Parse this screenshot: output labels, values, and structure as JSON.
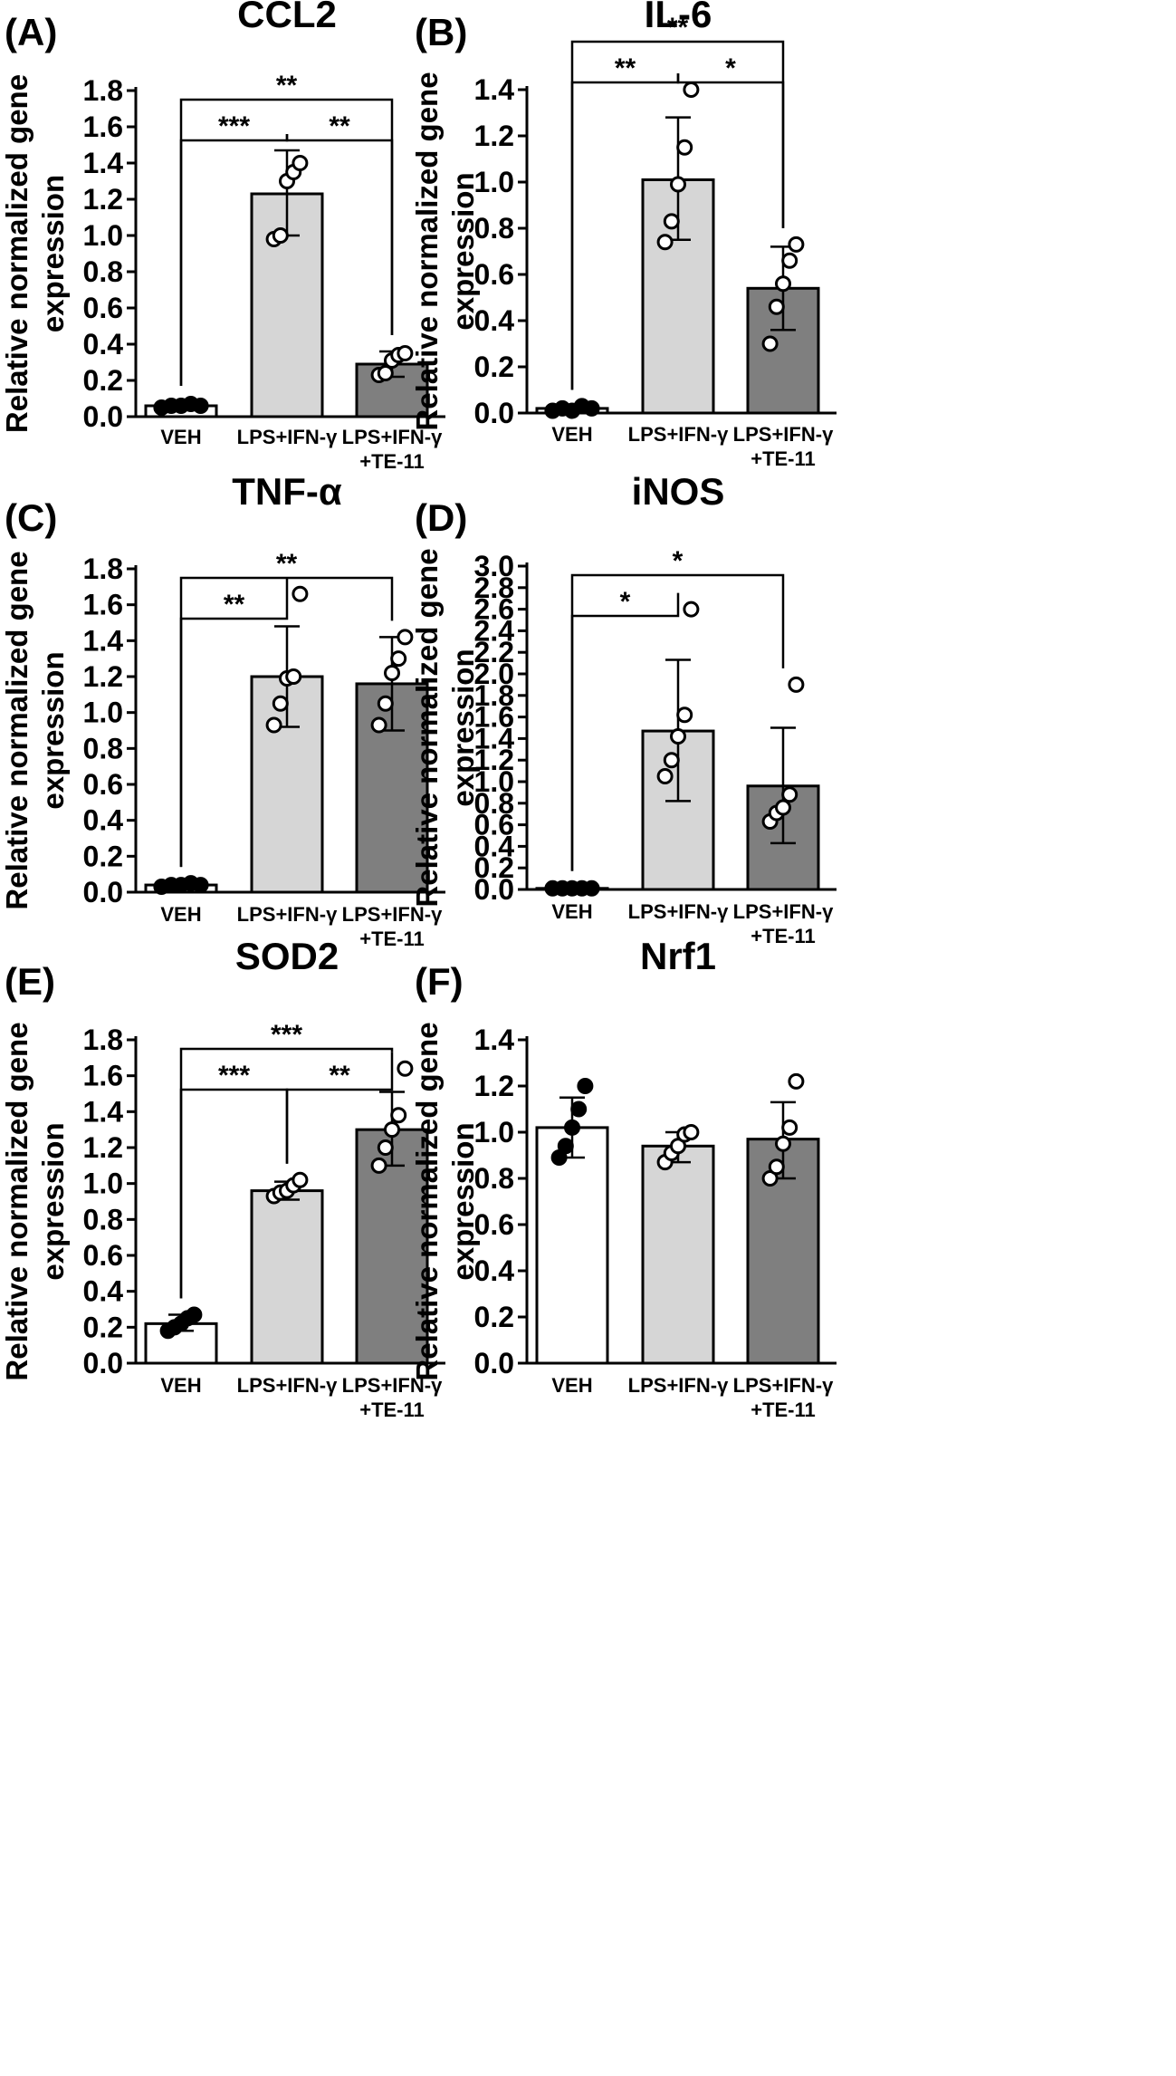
{
  "figure": {
    "colors": {
      "veh": "#ffffff",
      "lps": "#d6d6d6",
      "te11": "#7f7f7f",
      "stroke": "#000000"
    }
  },
  "chart_data": [
    {
      "type": "bar",
      "panel": "(A)",
      "title": "CCL2",
      "ylabel": [
        "Relative normalized gene",
        "expression"
      ],
      "ylim": [
        0,
        1.8
      ],
      "yticks": [
        "0.0",
        "0.2",
        "0.4",
        "0.6",
        "0.8",
        "1.0",
        "1.2",
        "1.4",
        "1.6",
        "1.8"
      ],
      "categories": [
        [
          "VEH"
        ],
        [
          "LPS+IFN-γ"
        ],
        [
          "LPS+IFN-γ",
          "+TE-11"
        ]
      ],
      "values": [
        0.06,
        1.23,
        0.29
      ],
      "error": [
        [
          0.04,
          0.08
        ],
        [
          1.0,
          1.47
        ],
        [
          0.22,
          0.36
        ]
      ],
      "points": [
        [
          0.05,
          0.06,
          0.06,
          0.07,
          0.06
        ],
        [
          0.98,
          1.0,
          1.3,
          1.35,
          1.4
        ],
        [
          0.23,
          0.24,
          0.31,
          0.34,
          0.35
        ]
      ],
      "significance": [
        {
          "from": 0,
          "to": 1,
          "label": "***"
        },
        {
          "from": 1,
          "to": 2,
          "label": "**"
        },
        {
          "from": 0,
          "to": 2,
          "label": "**"
        }
      ]
    },
    {
      "type": "bar",
      "panel": "(B)",
      "title": "IL-6",
      "ylabel": [
        "Relative normalized gene",
        "expression"
      ],
      "ylim": [
        0,
        1.4
      ],
      "yticks": [
        "0.0",
        "0.2",
        "0.4",
        "0.6",
        "0.8",
        "1.0",
        "1.2",
        "1.4"
      ],
      "categories": [
        [
          "VEH"
        ],
        [
          "LPS+IFN-γ"
        ],
        [
          "LPS+IFN-γ",
          "+TE-11"
        ]
      ],
      "values": [
        0.02,
        1.01,
        0.54
      ],
      "error": [
        [
          0.01,
          0.03
        ],
        [
          0.75,
          1.28
        ],
        [
          0.36,
          0.72
        ]
      ],
      "points": [
        [
          0.01,
          0.02,
          0.01,
          0.03,
          0.02
        ],
        [
          0.74,
          0.83,
          0.99,
          1.15,
          1.4
        ],
        [
          0.3,
          0.46,
          0.56,
          0.66,
          0.73
        ]
      ],
      "significance": [
        {
          "from": 0,
          "to": 1,
          "label": "**"
        },
        {
          "from": 1,
          "to": 2,
          "label": "*"
        },
        {
          "from": 0,
          "to": 2,
          "label": "**"
        }
      ]
    },
    {
      "type": "bar",
      "panel": "(C)",
      "title": "TNF-α",
      "ylabel": [
        "Relative normalized gene",
        "expression"
      ],
      "ylim": [
        0,
        1.8
      ],
      "yticks": [
        "0.0",
        "0.2",
        "0.4",
        "0.6",
        "0.8",
        "1.0",
        "1.2",
        "1.4",
        "1.6",
        "1.8"
      ],
      "categories": [
        [
          "VEH"
        ],
        [
          "LPS+IFN-γ"
        ],
        [
          "LPS+IFN-γ",
          "+TE-11"
        ]
      ],
      "values": [
        0.04,
        1.2,
        1.16
      ],
      "error": [
        [
          0.03,
          0.05
        ],
        [
          0.92,
          1.48
        ],
        [
          0.9,
          1.42
        ]
      ],
      "points": [
        [
          0.03,
          0.04,
          0.04,
          0.05,
          0.04
        ],
        [
          0.93,
          1.05,
          1.19,
          1.2,
          1.66
        ],
        [
          0.93,
          1.05,
          1.22,
          1.3,
          1.42
        ]
      ],
      "significance": [
        {
          "from": 0,
          "to": 1,
          "label": "**"
        },
        {
          "from": 0,
          "to": 2,
          "label": "**"
        }
      ]
    },
    {
      "type": "bar",
      "panel": "(D)",
      "title": "iNOS",
      "ylabel": [
        "Relative normalized gene",
        "expression"
      ],
      "ylim": [
        0,
        3.0
      ],
      "yticks": [
        "0.0",
        "0.2",
        "0.4",
        "0.6",
        "0.8",
        "1.0",
        "1.2",
        "1.4",
        "1.6",
        "1.8",
        "2.0",
        "2.2",
        "2.4",
        "2.6",
        "2.8",
        "3.0"
      ],
      "categories": [
        [
          "VEH"
        ],
        [
          "LPS+IFN-γ"
        ],
        [
          "LPS+IFN-γ",
          "+TE-11"
        ]
      ],
      "values": [
        0.01,
        1.47,
        0.96
      ],
      "error": [
        [
          0.0,
          0.02
        ],
        [
          0.82,
          2.13
        ],
        [
          0.43,
          1.5
        ]
      ],
      "points": [
        [
          0.01,
          0.01,
          0.01,
          0.01,
          0.01
        ],
        [
          1.05,
          1.2,
          1.42,
          1.62,
          2.6
        ],
        [
          0.63,
          0.71,
          0.76,
          0.88,
          1.9
        ]
      ],
      "significance": [
        {
          "from": 0,
          "to": 1,
          "label": "*"
        },
        {
          "from": 0,
          "to": 2,
          "label": "*"
        }
      ]
    },
    {
      "type": "bar",
      "panel": "(E)",
      "title": "SOD2",
      "ylabel": [
        "Relative normalized gene",
        "expression"
      ],
      "ylim": [
        0,
        1.8
      ],
      "yticks": [
        "0.0",
        "0.2",
        "0.4",
        "0.6",
        "0.8",
        "1.0",
        "1.2",
        "1.4",
        "1.6",
        "1.8"
      ],
      "categories": [
        [
          "VEH"
        ],
        [
          "LPS+IFN-γ"
        ],
        [
          "LPS+IFN-γ",
          "+TE-11"
        ]
      ],
      "values": [
        0.22,
        0.96,
        1.3
      ],
      "error": [
        [
          0.18,
          0.27
        ],
        [
          0.91,
          1.01
        ],
        [
          1.1,
          1.51
        ]
      ],
      "points": [
        [
          0.18,
          0.2,
          0.22,
          0.25,
          0.27
        ],
        [
          0.93,
          0.95,
          0.96,
          0.99,
          1.02
        ],
        [
          1.1,
          1.2,
          1.3,
          1.38,
          1.64
        ]
      ],
      "significance": [
        {
          "from": 0,
          "to": 1,
          "label": "***"
        },
        {
          "from": 1,
          "to": 2,
          "label": "**"
        },
        {
          "from": 0,
          "to": 2,
          "label": "***"
        }
      ]
    },
    {
      "type": "bar",
      "panel": "(F)",
      "title": "Nrf1",
      "ylabel": [
        "Relative normalized gene",
        "expression"
      ],
      "ylim": [
        0,
        1.4
      ],
      "yticks": [
        "0.0",
        "0.2",
        "0.4",
        "0.6",
        "0.8",
        "1.0",
        "1.2",
        "1.4"
      ],
      "categories": [
        [
          "VEH"
        ],
        [
          "LPS+IFN-γ"
        ],
        [
          "LPS+IFN-γ",
          "+TE-11"
        ]
      ],
      "values": [
        1.02,
        0.94,
        0.97
      ],
      "error": [
        [
          0.89,
          1.15
        ],
        [
          0.87,
          1.0
        ],
        [
          0.8,
          1.13
        ]
      ],
      "points": [
        [
          0.89,
          0.94,
          1.02,
          1.1,
          1.2
        ],
        [
          0.87,
          0.91,
          0.94,
          0.99,
          1.0
        ],
        [
          0.8,
          0.85,
          0.95,
          1.02,
          1.22
        ]
      ],
      "significance": []
    }
  ]
}
